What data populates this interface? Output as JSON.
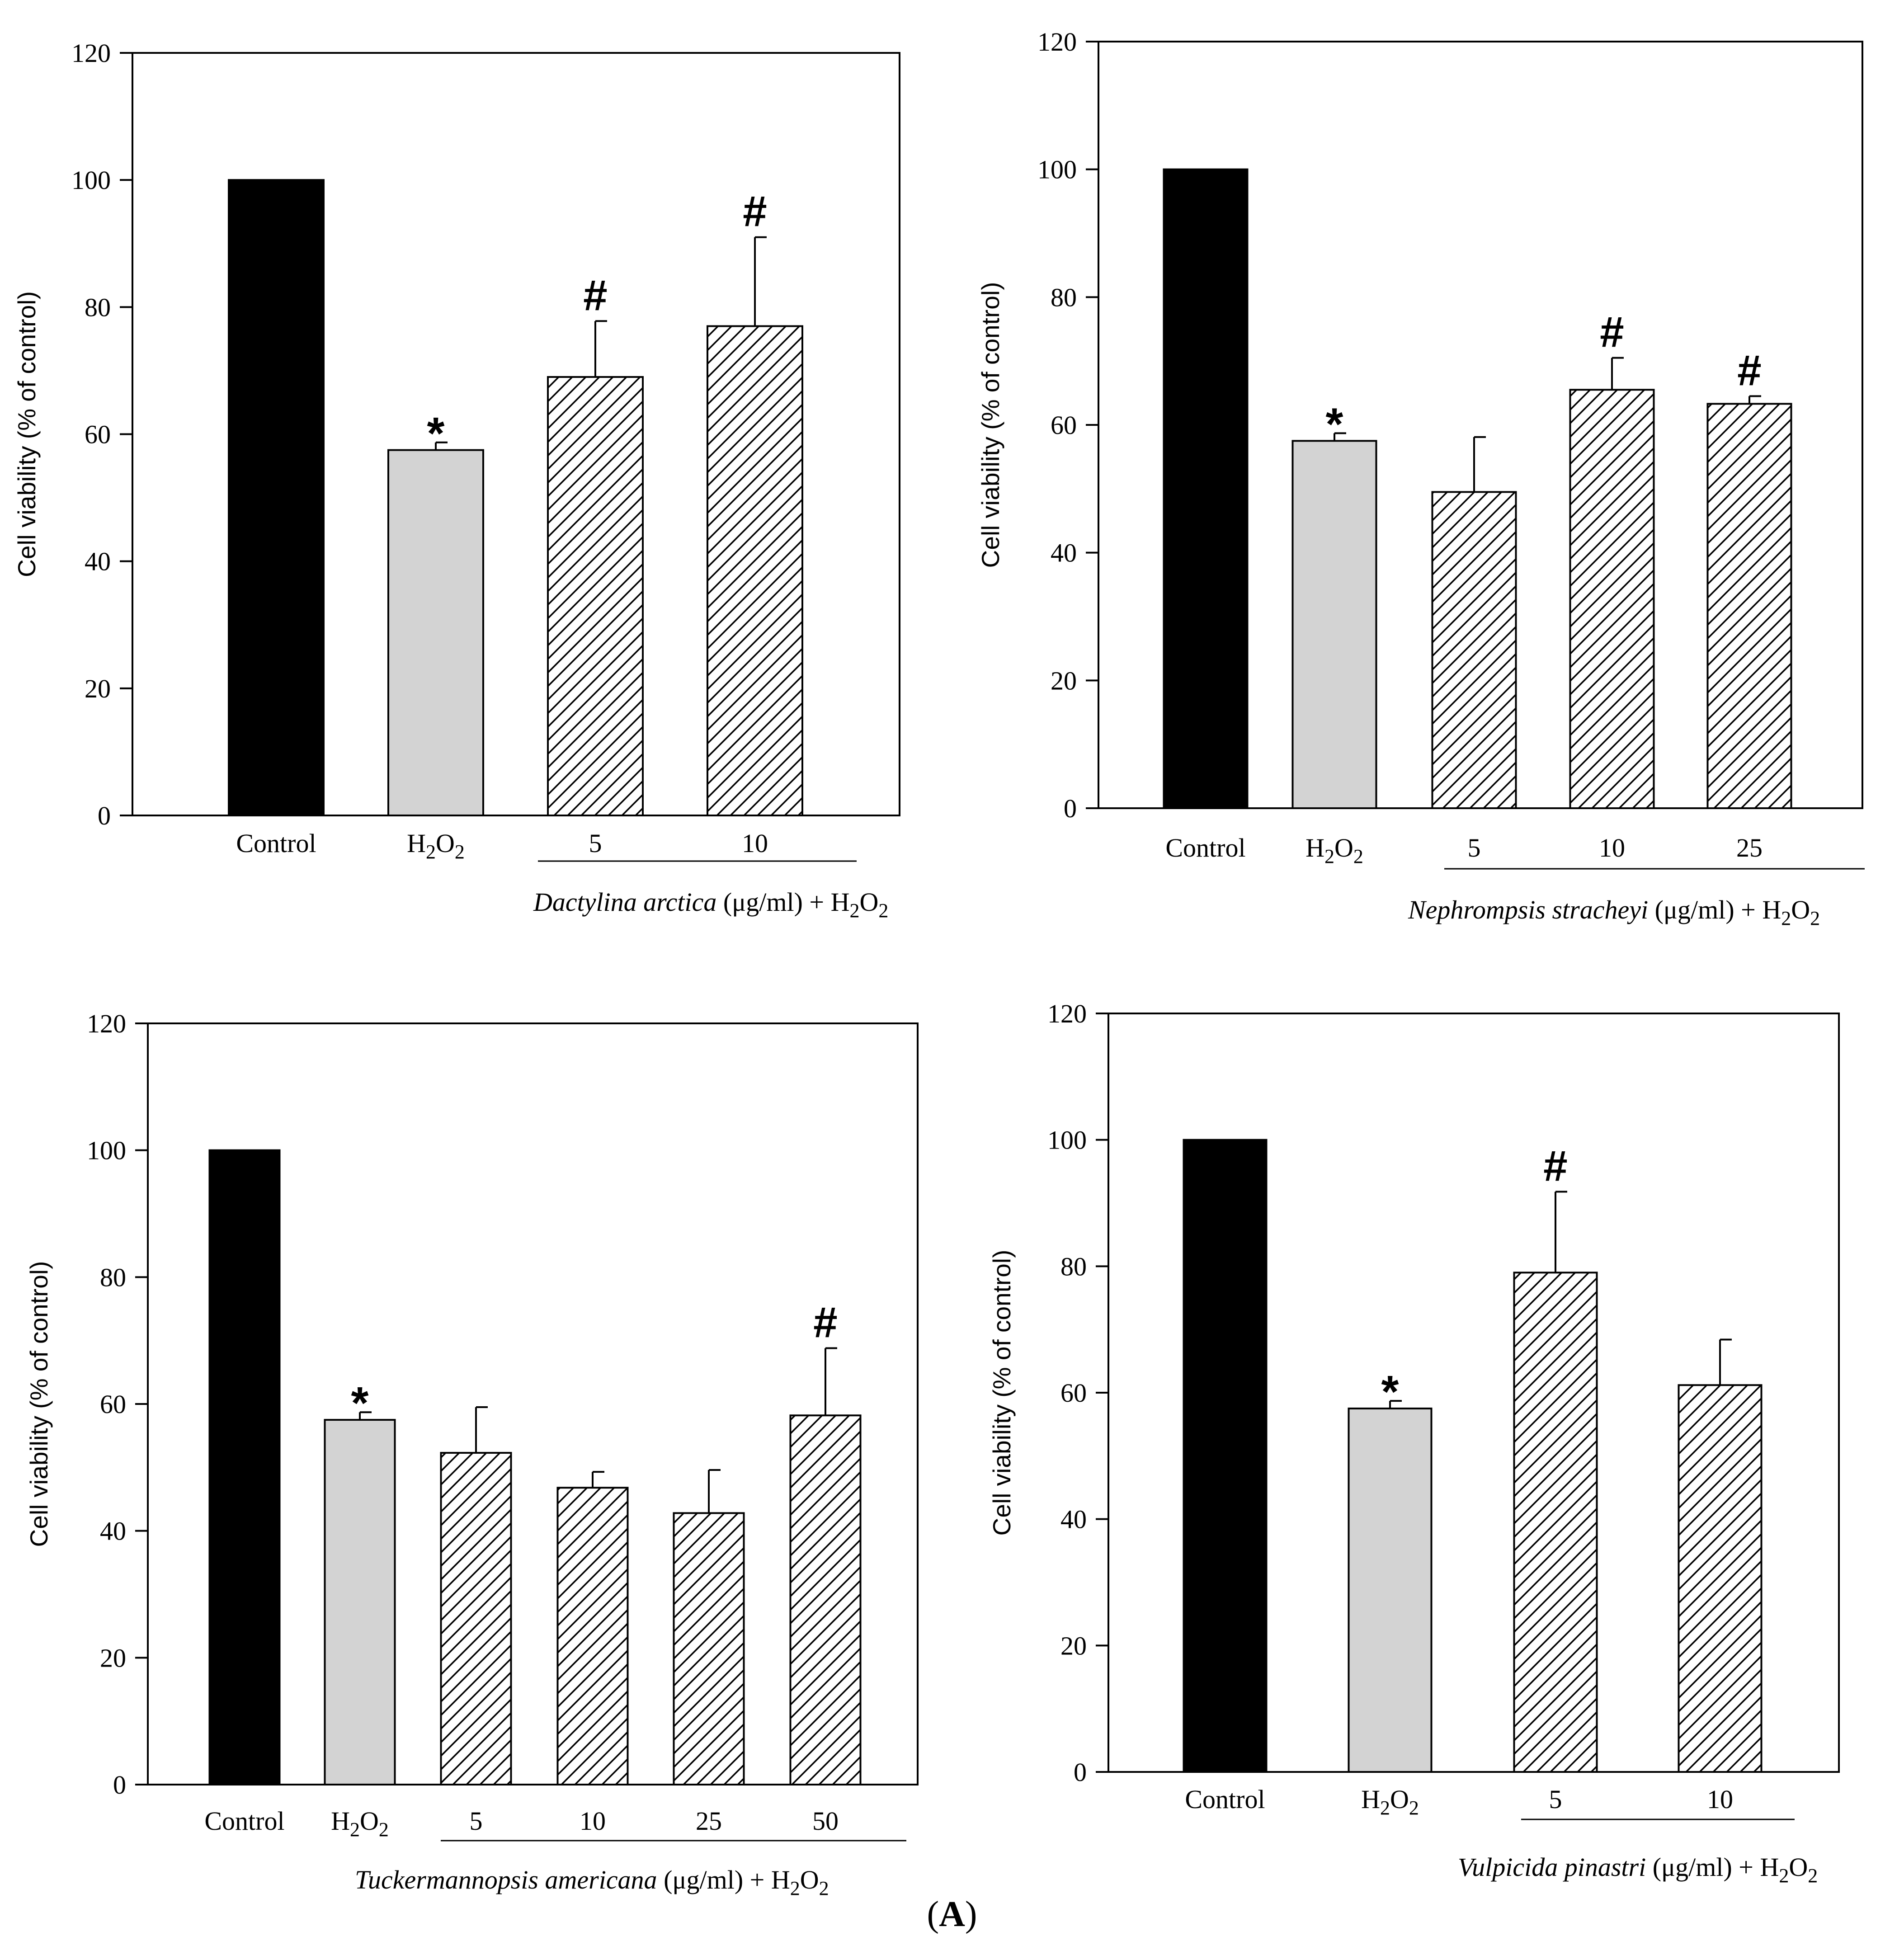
{
  "figure": {
    "panel_label_open": "(",
    "panel_label_letter": "A",
    "panel_label_close": ")"
  },
  "colors": {
    "control": "#000000",
    "h2o2": "#d3d3d3",
    "treatment": "#ffffff",
    "stroke": "#000000"
  },
  "chart_data": [
    {
      "type": "bar",
      "title": "",
      "ylabel": "Cell viability (% of control)",
      "ylim": [
        0,
        120
      ],
      "yticks": [
        0,
        20,
        40,
        60,
        80,
        100,
        120
      ],
      "categories": [
        "Control",
        "H2O2",
        "5",
        "10"
      ],
      "values": [
        100,
        57.5,
        69,
        77
      ],
      "errors": [
        0,
        1.2,
        8.8,
        14
      ],
      "markers": [
        "",
        "*",
        "#",
        "#"
      ],
      "fills": [
        "control",
        "h2o2",
        "hatch",
        "hatch"
      ],
      "species": "Dactylina arctica",
      "unit": "(μg/ml) + H",
      "sub": "2",
      "o": "O",
      "sub2": "2"
    },
    {
      "type": "bar",
      "title": "",
      "ylabel": "Cell viability (% of control)",
      "ylim": [
        0,
        120
      ],
      "yticks": [
        0,
        20,
        40,
        60,
        80,
        100,
        120
      ],
      "categories": [
        "Control",
        "H2O2",
        "5",
        "10",
        "25"
      ],
      "values": [
        100,
        57.5,
        49.5,
        65.5,
        63.3
      ],
      "errors": [
        0,
        1.2,
        8.6,
        5,
        1.2
      ],
      "markers": [
        "",
        "*",
        "",
        "#",
        "#"
      ],
      "fills": [
        "control",
        "h2o2",
        "hatch",
        "hatch",
        "hatch"
      ],
      "species": "Nephrompsis stracheyi",
      "unit": "(μg/ml) + H",
      "sub": "2",
      "o": "O",
      "sub2": "2"
    },
    {
      "type": "bar",
      "title": "",
      "ylabel": "Cell viability (% of control)",
      "ylim": [
        0,
        120
      ],
      "yticks": [
        0,
        20,
        40,
        60,
        80,
        100,
        120
      ],
      "categories": [
        "Control",
        "H2O2",
        "5",
        "10",
        "25",
        "50"
      ],
      "values": [
        100,
        57.5,
        52.3,
        46.8,
        42.8,
        58.2
      ],
      "errors": [
        0,
        1.2,
        7.2,
        2.5,
        6.8,
        10.6
      ],
      "markers": [
        "",
        "*",
        "",
        "",
        "",
        "#"
      ],
      "fills": [
        "control",
        "h2o2",
        "hatch",
        "hatch",
        "hatch",
        "hatch"
      ],
      "species": "Tuckermannopsis americana",
      "unit": "(μg/ml) + H",
      "sub": "2",
      "o": "O",
      "sub2": "2"
    },
    {
      "type": "bar",
      "title": "",
      "ylabel": "Cell viability (% of control)",
      "ylim": [
        0,
        120
      ],
      "yticks": [
        0,
        20,
        40,
        60,
        80,
        100,
        120
      ],
      "categories": [
        "Control",
        "H2O2",
        "5",
        "10"
      ],
      "values": [
        100,
        57.5,
        79,
        61.2
      ],
      "errors": [
        0,
        1.2,
        12.8,
        7.2
      ],
      "markers": [
        "",
        "*",
        "#",
        ""
      ],
      "fills": [
        "control",
        "h2o2",
        "hatch",
        "hatch"
      ],
      "species": "Vulpicida pinastri",
      "unit": "(μg/ml) + H",
      "sub": "2",
      "o": "O",
      "sub2": "2"
    }
  ]
}
